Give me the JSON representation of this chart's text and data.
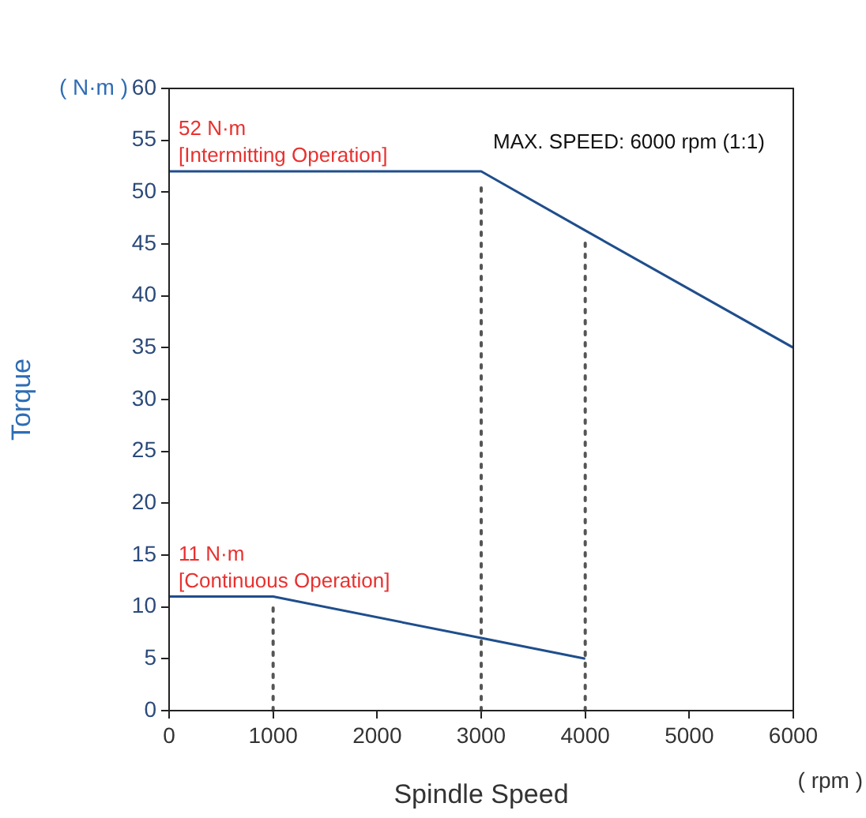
{
  "chart_data": {
    "type": "line",
    "xlabel": "Spindle Speed",
    "ylabel": "Torque",
    "xlim": [
      0,
      6000
    ],
    "xticks": [
      0,
      1000,
      2000,
      3000,
      4000,
      5000,
      6000
    ],
    "ylim": [
      0,
      60
    ],
    "yticks": [
      0,
      5,
      10,
      15,
      20,
      25,
      30,
      35,
      40,
      45,
      50,
      55,
      60
    ],
    "grid": false,
    "legend": false,
    "marker": "none",
    "line_style": "solid",
    "series": [
      {
        "color": "#1f4e8c",
        "x": [
          0,
          3000,
          4000,
          6000
        ],
        "values": [
          52,
          52,
          46.3,
          35
        ]
      },
      {
        "color": "#1f4e8c",
        "x": [
          0,
          1000,
          3000,
          4000
        ],
        "values": [
          11,
          11,
          7,
          5
        ]
      }
    ],
    "ref_lines": [
      {
        "axis": "x",
        "value": 1000,
        "color": "#555555",
        "line_style": "dotted"
      },
      {
        "axis": "x",
        "value": 3000,
        "color": "#555555",
        "line_style": "dotted"
      },
      {
        "axis": "x",
        "value": 4000,
        "color": "#555555",
        "line_style": "dotted"
      }
    ],
    "annotations": [
      {
        "text": "52 N·m\n[Intermitting Operation]",
        "x": 0,
        "y": 52
      },
      {
        "text": "11 N·m\n[Continuous Operation]",
        "x": 0,
        "y": 11
      },
      "MAX. SPEED: 6000 rpm (1:1)",
      "( N·m )",
      "( rpm )"
    ]
  }
}
